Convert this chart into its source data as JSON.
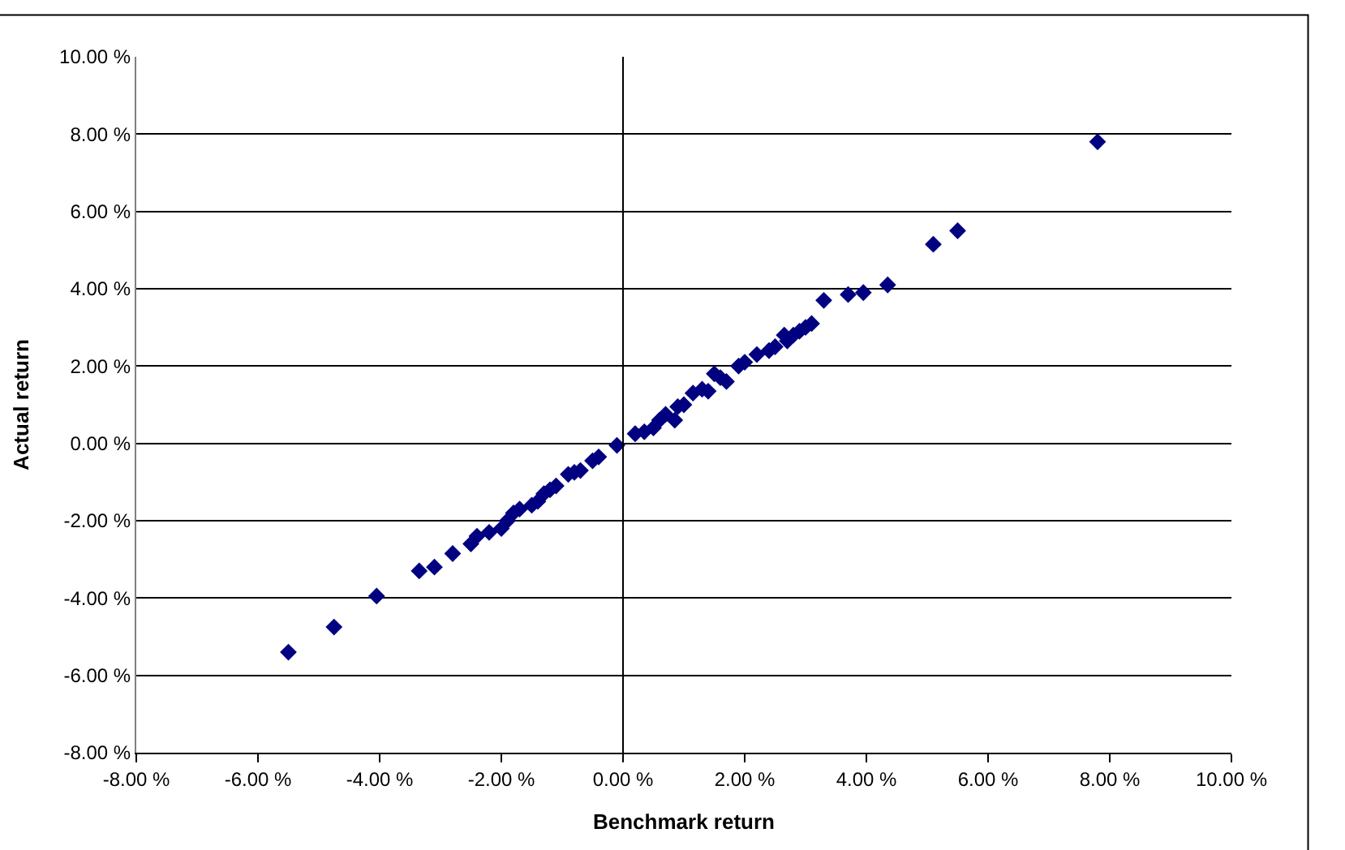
{
  "chart_data": {
    "type": "scatter",
    "xlabel": "Benchmark return",
    "ylabel": "Actual return",
    "marker": "diamond",
    "grid": "y",
    "ref_lines": [
      {
        "axis": "x",
        "value": 0,
        "color": "#000000"
      }
    ],
    "xlim": [
      -8,
      10
    ],
    "ylim": [
      -8,
      10
    ],
    "xticks": [
      {
        "value": -8,
        "label": "-8.00 %"
      },
      {
        "value": -6,
        "label": "-6.00 %"
      },
      {
        "value": -4,
        "label": "-4.00 %"
      },
      {
        "value": -2,
        "label": "-2.00 %"
      },
      {
        "value": 0,
        "label": "0.00 %"
      },
      {
        "value": 2,
        "label": "2.00 %"
      },
      {
        "value": 4,
        "label": "4.00 %"
      },
      {
        "value": 6,
        "label": "6.00 %"
      },
      {
        "value": 8,
        "label": "8.00 %"
      },
      {
        "value": 10,
        "label": "10.00 %"
      }
    ],
    "yticks": [
      {
        "value": -8,
        "label": "-8.00 %"
      },
      {
        "value": -6,
        "label": "-6.00 %"
      },
      {
        "value": -4,
        "label": "-4.00 %"
      },
      {
        "value": -2,
        "label": "-2.00 %"
      },
      {
        "value": 0,
        "label": "0.00 %"
      },
      {
        "value": 2,
        "label": "2.00 %"
      },
      {
        "value": 4,
        "label": "4.00 %"
      },
      {
        "value": 6,
        "label": "6.00 %"
      },
      {
        "value": 8,
        "label": "8.00 %"
      },
      {
        "value": 10,
        "label": "10.00 %"
      }
    ],
    "series": [
      {
        "color": "#000080",
        "x": [
          -5.5,
          -4.75,
          -4.05,
          -3.35,
          -3.1,
          -2.8,
          -2.5,
          -2.4,
          -2.2,
          -2.0,
          -1.9,
          -1.8,
          -1.7,
          -1.5,
          -1.4,
          -1.3,
          -1.2,
          -1.1,
          -0.9,
          -0.8,
          -0.7,
          -0.5,
          -0.4,
          -0.1,
          0.2,
          0.35,
          0.5,
          0.6,
          0.7,
          0.85,
          0.9,
          1.0,
          1.15,
          1.3,
          1.4,
          1.5,
          1.6,
          1.7,
          1.9,
          2.0,
          2.2,
          2.4,
          2.5,
          2.65,
          2.7,
          2.8,
          2.9,
          3.0,
          3.1,
          3.3,
          3.7,
          3.95,
          4.35,
          5.1,
          5.5,
          7.8
        ],
        "values": [
          -5.4,
          -4.75,
          -3.95,
          -3.3,
          -3.2,
          -2.85,
          -2.6,
          -2.4,
          -2.3,
          -2.2,
          -2.0,
          -1.8,
          -1.7,
          -1.6,
          -1.5,
          -1.3,
          -1.2,
          -1.1,
          -0.8,
          -0.75,
          -0.7,
          -0.45,
          -0.35,
          -0.05,
          0.25,
          0.3,
          0.4,
          0.6,
          0.75,
          0.6,
          0.95,
          1.0,
          1.3,
          1.4,
          1.35,
          1.8,
          1.7,
          1.6,
          2.0,
          2.1,
          2.3,
          2.4,
          2.5,
          2.8,
          2.65,
          2.8,
          2.9,
          3.0,
          3.1,
          3.7,
          3.85,
          3.9,
          4.1,
          5.15,
          5.5,
          7.8
        ]
      }
    ]
  }
}
